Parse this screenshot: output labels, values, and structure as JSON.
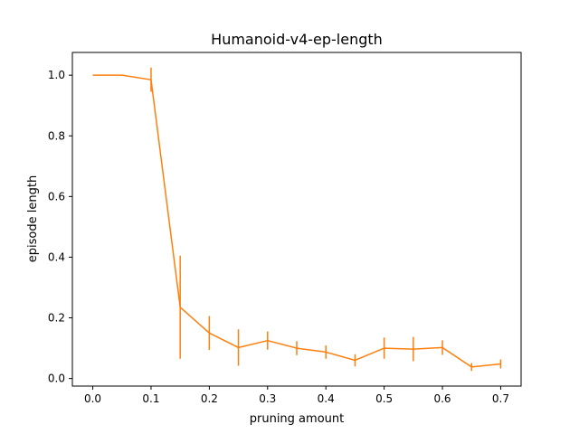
{
  "chart_data": {
    "type": "line",
    "title": "Humanoid-v4-ep-length",
    "xlabel": "pruning amount",
    "ylabel": "episode length",
    "xlim": [
      -0.035,
      0.735
    ],
    "ylim": [
      -0.025,
      1.075
    ],
    "xticks": [
      0.0,
      0.1,
      0.2,
      0.3,
      0.4,
      0.5,
      0.6,
      0.7
    ],
    "xtick_labels": [
      "0.0",
      "0.1",
      "0.2",
      "0.3",
      "0.4",
      "0.5",
      "0.6",
      "0.7"
    ],
    "yticks": [
      0.0,
      0.2,
      0.4,
      0.6,
      0.8,
      1.0
    ],
    "ytick_labels": [
      "0.0",
      "0.2",
      "0.4",
      "0.6",
      "0.8",
      "1.0"
    ],
    "grid": false,
    "series": [
      {
        "color": "#ff7f0e",
        "x": [
          0.0,
          0.05,
          0.1,
          0.15,
          0.2,
          0.25,
          0.3,
          0.35,
          0.4,
          0.45,
          0.5,
          0.55,
          0.6,
          0.65,
          0.7
        ],
        "y": [
          1.0,
          1.0,
          0.985,
          0.235,
          0.15,
          0.102,
          0.125,
          0.1,
          0.087,
          0.06,
          0.1,
          0.097,
          0.102,
          0.038,
          0.048
        ],
        "yerr": [
          0.0,
          0.0,
          0.04,
          0.17,
          0.056,
          0.06,
          0.03,
          0.023,
          0.022,
          0.02,
          0.035,
          0.04,
          0.024,
          0.013,
          0.015
        ]
      }
    ]
  }
}
